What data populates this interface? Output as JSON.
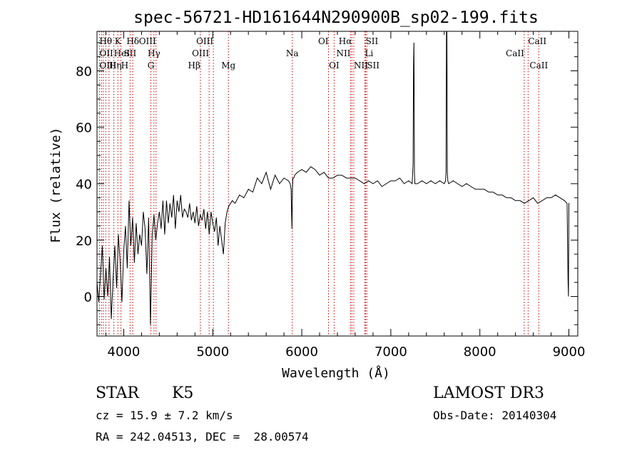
{
  "chart_data": {
    "type": "line",
    "title": "spec-56721-HD161644N290900B_sp02-199.fits",
    "xlabel": "Wavelength (Å)",
    "ylabel": "Flux (relative)",
    "xlim": [
      3700,
      9100
    ],
    "ylim": [
      -14,
      94
    ],
    "x_ticks": [
      4000,
      5000,
      6000,
      7000,
      8000,
      9000
    ],
    "y_ticks": [
      0,
      20,
      40,
      60,
      80
    ],
    "grid": false,
    "series": [
      {
        "name": "flux",
        "x": [
          3700,
          3720,
          3740,
          3760,
          3780,
          3800,
          3820,
          3840,
          3860,
          3880,
          3900,
          3920,
          3940,
          3960,
          3980,
          4000,
          4020,
          4040,
          4060,
          4080,
          4100,
          4120,
          4140,
          4160,
          4180,
          4200,
          4220,
          4240,
          4260,
          4280,
          4300,
          4320,
          4340,
          4360,
          4380,
          4400,
          4420,
          4440,
          4460,
          4480,
          4500,
          4520,
          4540,
          4560,
          4580,
          4600,
          4620,
          4640,
          4660,
          4680,
          4700,
          4720,
          4740,
          4760,
          4780,
          4800,
          4820,
          4840,
          4860,
          4880,
          4900,
          4920,
          4940,
          4960,
          4980,
          5000,
          5020,
          5040,
          5060,
          5080,
          5100,
          5120,
          5140,
          5160,
          5180,
          5200,
          5220,
          5250,
          5300,
          5350,
          5400,
          5450,
          5500,
          5550,
          5600,
          5650,
          5700,
          5750,
          5800,
          5850,
          5870,
          5880,
          5885,
          5890,
          5895,
          5900,
          5910,
          5920,
          5950,
          6000,
          6050,
          6100,
          6150,
          6200,
          6250,
          6300,
          6350,
          6400,
          6450,
          6500,
          6550,
          6600,
          6650,
          6700,
          6750,
          6800,
          6850,
          6900,
          6950,
          7000,
          7050,
          7100,
          7150,
          7200,
          7240,
          7250,
          7255,
          7260,
          7265,
          7270,
          7280,
          7300,
          7350,
          7400,
          7450,
          7500,
          7550,
          7600,
          7615,
          7620,
          7625,
          7630,
          7635,
          7640,
          7650,
          7700,
          7750,
          7800,
          7850,
          7900,
          7950,
          8000,
          8050,
          8100,
          8150,
          8200,
          8250,
          8300,
          8350,
          8400,
          8450,
          8500,
          8550,
          8600,
          8650,
          8700,
          8750,
          8800,
          8850,
          8900,
          8950,
          8980,
          8990,
          8995,
          9000,
          9005
        ],
        "values": [
          5,
          -2,
          8,
          18,
          -1,
          10,
          0,
          14,
          -8,
          6,
          18,
          3,
          22,
          12,
          -2,
          16,
          25,
          10,
          34,
          18,
          28,
          12,
          26,
          15,
          22,
          18,
          30,
          24,
          8,
          28,
          -10,
          22,
          29,
          20,
          26,
          30,
          24,
          34,
          22,
          34,
          26,
          33,
          28,
          36,
          24,
          34,
          30,
          36,
          28,
          31,
          30,
          28,
          33,
          27,
          30,
          26,
          32,
          25,
          29,
          27,
          31,
          24,
          30,
          22,
          30,
          26,
          23,
          28,
          18,
          25,
          20,
          15,
          26,
          30,
          32,
          33,
          34,
          33,
          36,
          35,
          38,
          37,
          42,
          40,
          44,
          38,
          43,
          40,
          42,
          41,
          40,
          38,
          30,
          24,
          38,
          42,
          42,
          43,
          44,
          45,
          44,
          46,
          45,
          43,
          44,
          42,
          42,
          43,
          43,
          42,
          42,
          42,
          41,
          40,
          41,
          40,
          41,
          39,
          40,
          41,
          41,
          42,
          40,
          41,
          40,
          47,
          82,
          90,
          44,
          40,
          40,
          40,
          41,
          40,
          41,
          40,
          41,
          40,
          41,
          44,
          94,
          94,
          44,
          41,
          40,
          41,
          40,
          39,
          40,
          39,
          38,
          38,
          38,
          37,
          37,
          36,
          36,
          35,
          35,
          34,
          34,
          33,
          34,
          35,
          33,
          34,
          35,
          35,
          36,
          35,
          34,
          33,
          6,
          0,
          33,
          33
        ]
      }
    ],
    "line_markers": [
      {
        "label": "Hθ",
        "x": 3798,
        "row": 0,
        "anchor": "middle"
      },
      {
        "label": "K",
        "x": 3934,
        "row": 0,
        "anchor": "middle"
      },
      {
        "label": "Hδ",
        "x": 4102,
        "row": 0,
        "anchor": "middle"
      },
      {
        "label": "OIII",
        "x": 4363,
        "row": 0,
        "anchor": "end"
      },
      {
        "label": "OIII",
        "x": 5007,
        "row": 0,
        "anchor": "end"
      },
      {
        "label": "OI",
        "x": 6300,
        "row": 0,
        "anchor": "end"
      },
      {
        "label": "Hα",
        "x": 6563,
        "row": 0,
        "anchor": "end"
      },
      {
        "label": "SII",
        "x": 6717,
        "row": 0,
        "anchor": "start"
      },
      {
        "label": "CaII",
        "x": 8542,
        "row": 0,
        "anchor": "start"
      },
      {
        "label": "OII",
        "x": 3727,
        "row": 1,
        "anchor": "start"
      },
      {
        "label": "HeI",
        "x": 3889,
        "row": 1,
        "anchor": "start"
      },
      {
        "label": "SII",
        "x": 4072,
        "row": 1,
        "anchor": "middle"
      },
      {
        "label": "Hγ",
        "x": 4340,
        "row": 1,
        "anchor": "middle"
      },
      {
        "label": "OIII",
        "x": 4959,
        "row": 1,
        "anchor": "end"
      },
      {
        "label": "Na",
        "x": 5893,
        "row": 1,
        "anchor": "middle"
      },
      {
        "label": "NII",
        "x": 6548,
        "row": 1,
        "anchor": "end"
      },
      {
        "label": "Li",
        "x": 6708,
        "row": 1,
        "anchor": "start"
      },
      {
        "label": "CaII",
        "x": 8498,
        "row": 1,
        "anchor": "end"
      },
      {
        "label": "OIII",
        "x": 3727,
        "row": 2,
        "anchor": "start"
      },
      {
        "label": "Hη",
        "x": 3835,
        "row": 2,
        "anchor": "start"
      },
      {
        "label": "H",
        "x": 3969,
        "row": 2,
        "anchor": "start"
      },
      {
        "label": "G",
        "x": 4305,
        "row": 2,
        "anchor": "middle"
      },
      {
        "label": "Hβ",
        "x": 4861,
        "row": 2,
        "anchor": "end"
      },
      {
        "label": "Mg",
        "x": 5176,
        "row": 2,
        "anchor": "middle"
      },
      {
        "label": "OI",
        "x": 6363,
        "row": 2,
        "anchor": "middle"
      },
      {
        "label": "NII",
        "x": 6584,
        "row": 2,
        "anchor": "start"
      },
      {
        "label": "SII",
        "x": 6731,
        "row": 2,
        "anchor": "start"
      },
      {
        "label": "CaII",
        "x": 8662,
        "row": 2,
        "anchor": "middle"
      }
    ],
    "marker_lines_x": [
      3727,
      3750,
      3771,
      3798,
      3835,
      3889,
      3934,
      3969,
      4072,
      4102,
      4305,
      4340,
      4363,
      4861,
      4959,
      5007,
      5176,
      5893,
      6300,
      6363,
      6548,
      6563,
      6584,
      6708,
      6717,
      6731,
      8498,
      8542,
      8662
    ]
  },
  "info": {
    "object_class": "STAR",
    "subclass": "K5",
    "survey": "LAMOST DR3",
    "cz": "cz = 15.9 ± 7.2 km/s",
    "obs_date": "Obs-Date: 20140304",
    "coords": "RA = 242.04513, DEC =  28.00574"
  },
  "colors": {
    "axis": "#000000",
    "spectrum": "#000000",
    "marker_line": "#cc0000"
  }
}
